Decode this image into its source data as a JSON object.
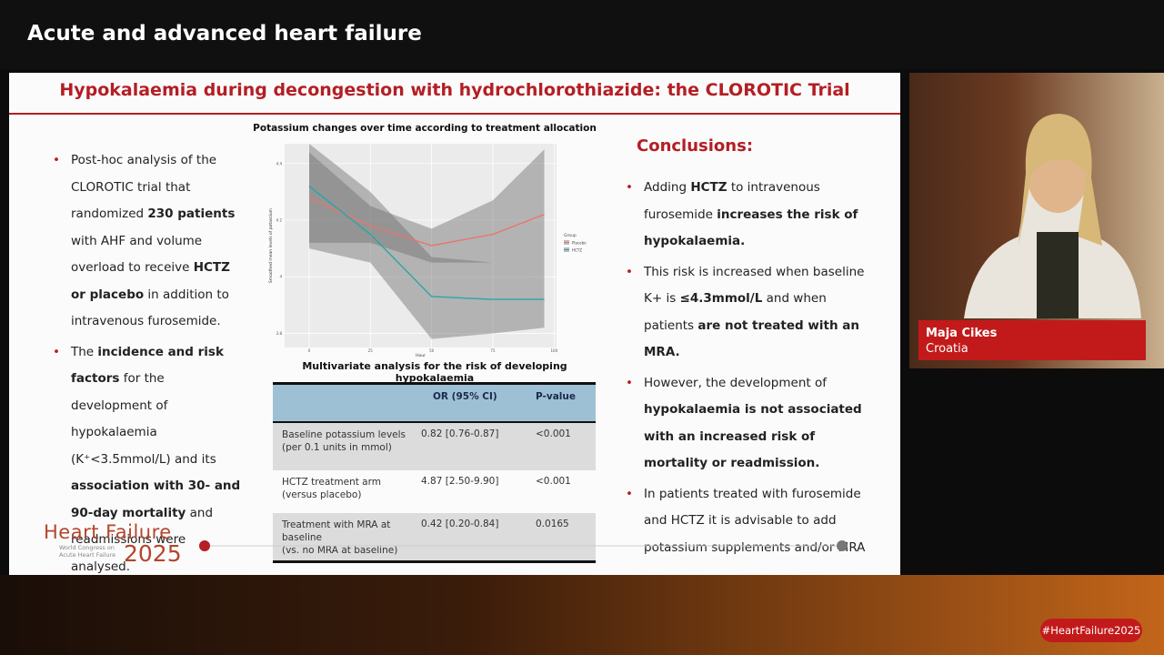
{
  "header": {
    "title": "Acute and advanced heart failure"
  },
  "slide": {
    "title": "Hypokalaemia during decongestion with hydrochlorothiazide: the CLOROTIC Trial",
    "left_bullets": [
      [
        {
          "text": "Post-hoc analysis of the CLOROTIC trial that randomized "
        },
        {
          "text": "230 patients",
          "bold": true
        },
        {
          "text": " with AHF and volume overload to receive "
        },
        {
          "text": "HCTZ or placebo",
          "bold": true
        },
        {
          "text": " in addition to intravenous furosemide."
        }
      ],
      [
        {
          "text": "The "
        },
        {
          "text": "incidence and risk factors",
          "bold": true
        },
        {
          "text": " for the development of hypokalaemia (K⁺<3.5mmol/L) and its "
        },
        {
          "text": "association with 30- and 90-day mortality",
          "bold": true
        },
        {
          "text": " and readmissions were analysed."
        }
      ]
    ],
    "conclusions_title": "Conclusions:",
    "conclusions": [
      [
        {
          "text": "Adding "
        },
        {
          "text": "HCTZ",
          "bold": true
        },
        {
          "text": " to intravenous furosemide "
        },
        {
          "text": "increases the risk of hypokalaemia.",
          "bold": true
        }
      ],
      [
        {
          "text": "This risk is increased when baseline K+ is "
        },
        {
          "text": "≤4.3mmol/L",
          "bold": true
        },
        {
          "text": " and when patients "
        },
        {
          "text": "are not treated with an MRA.",
          "bold": true
        }
      ],
      [
        {
          "text": "However, the development of "
        },
        {
          "text": "hypokalaemia is not associated with an increased risk of mortality or readmission.",
          "bold": true
        }
      ],
      [
        {
          "text": "In patients treated with furosemide and HCTZ it is advisable to add potassium supplements and/or MRA"
        }
      ]
    ],
    "table": {
      "title": "Multivariate analysis for the risk of developing hypokalaemia",
      "headers": [
        "OR (95% CI)",
        "P-value"
      ],
      "rows": [
        {
          "label": [
            "Baseline potassium levels",
            "(per 0.1 units in mmol)"
          ],
          "or": "0.82 [0.76-0.87]",
          "p": "<0.001"
        },
        {
          "label": [
            "HCTZ treatment arm",
            "(versus placebo)"
          ],
          "or": "4.87 [2.50-9.90]",
          "p": "<0.001"
        },
        {
          "label": [
            "Treatment with MRA at",
            "baseline",
            "(vs. no MRA at baseline)"
          ],
          "or": "0.42 [0.20-0.84]",
          "p": "0.0165"
        }
      ]
    },
    "logo": {
      "name": "Heart Failure",
      "subtitle": "World Congress on Acute Heart Failure",
      "year": "2025"
    }
  },
  "chart_data": {
    "type": "line",
    "title": "Potassium changes over time according to treatment allocation",
    "x_label": "Hour",
    "y_label": "Smoothed mean levels of potassium",
    "legend_title": "Group",
    "x": [
      0,
      25,
      50,
      75,
      96
    ],
    "series": [
      {
        "name": "Placebo",
        "color": "#e8766d",
        "values": [
          4.28,
          4.18,
          4.11,
          4.15,
          4.22
        ],
        "lower": [
          4.12,
          4.12,
          4.05,
          4.05,
          4.0
        ],
        "upper": [
          4.44,
          4.25,
          4.17,
          4.27,
          4.45
        ]
      },
      {
        "name": "HCTZ",
        "color": "#2aa5a5",
        "values": [
          4.32,
          4.15,
          3.93,
          3.92,
          3.92
        ],
        "lower": [
          4.1,
          4.05,
          3.78,
          3.8,
          3.82
        ],
        "upper": [
          4.47,
          4.3,
          4.07,
          4.05,
          4.0
        ]
      }
    ],
    "xlim": [
      -10,
      101
    ],
    "ylim": [
      3.75,
      4.47
    ],
    "xticks": [
      0,
      25,
      50,
      75,
      100
    ],
    "yticks": [
      3.8,
      4.0,
      4.2,
      4.4
    ],
    "grid": true
  },
  "speaker": {
    "name": "Maja Cikes",
    "country": "Croatia"
  },
  "hashtag": "#HeartFailure2025"
}
